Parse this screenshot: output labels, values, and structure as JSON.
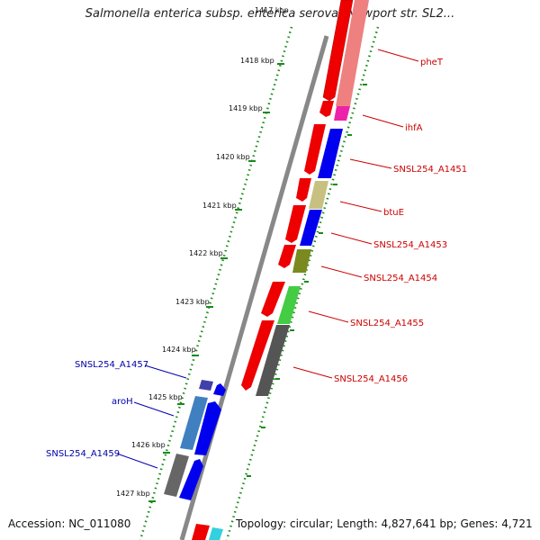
{
  "title": "Salmonella enterica subsp. enterica serovar Newport str. SL2...",
  "footer": {
    "accession": "Accession: NC_011080",
    "topology": "Topology: circular; Length: 4,827,641 bp; Genes: 4,721"
  },
  "ruler": {
    "top_partial": "1417 kbp",
    "ticks": [
      "1418 kbp",
      "1419 kbp",
      "1420 kbp",
      "1421 kbp",
      "1422 kbp",
      "1423 kbp",
      "1424 kbp",
      "1425 kbp",
      "1426 kbp",
      "1427 kbp"
    ]
  },
  "gene_labels_right": [
    "pheT",
    "ihfA",
    "SNSL254_A1451",
    "btuE",
    "SNSL254_A1453",
    "SNSL254_A1454",
    "SNSL254_A1455",
    "SNSL254_A1456"
  ],
  "gene_labels_left": [
    "SNSL254_A1457",
    "aroH",
    "SNSL254_A1459"
  ],
  "colors": {
    "cds": "#ee0000",
    "orf_blue": "#0000ee",
    "backbone": "#888888",
    "ruler_dots": "#1a8a1a",
    "forward_label": "#cc0000",
    "reverse_label": "#0000aa"
  }
}
